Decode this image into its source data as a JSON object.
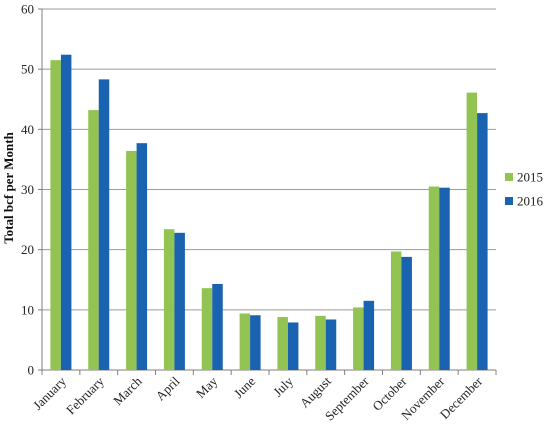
{
  "chart_data": {
    "type": "bar",
    "title": "",
    "xlabel": "",
    "ylabel": "Total bcf per Month",
    "ylim": [
      0,
      60
    ],
    "yticks": [
      0,
      10,
      20,
      30,
      40,
      50,
      60
    ],
    "grid": true,
    "legend_position": "right",
    "categories": [
      "January",
      "February",
      "March",
      "April",
      "May",
      "June",
      "July",
      "August",
      "September",
      "October",
      "November",
      "December"
    ],
    "series": [
      {
        "name": "2015",
        "color": "#92c353",
        "values": [
          51.5,
          43.2,
          36.4,
          23.4,
          13.6,
          9.4,
          8.8,
          9.0,
          10.4,
          19.7,
          30.5,
          46.1
        ]
      },
      {
        "name": "2016",
        "color": "#1a63b0",
        "values": [
          52.4,
          48.3,
          37.7,
          22.8,
          14.3,
          9.1,
          7.9,
          8.4,
          11.5,
          18.8,
          30.3,
          42.7
        ]
      }
    ]
  }
}
